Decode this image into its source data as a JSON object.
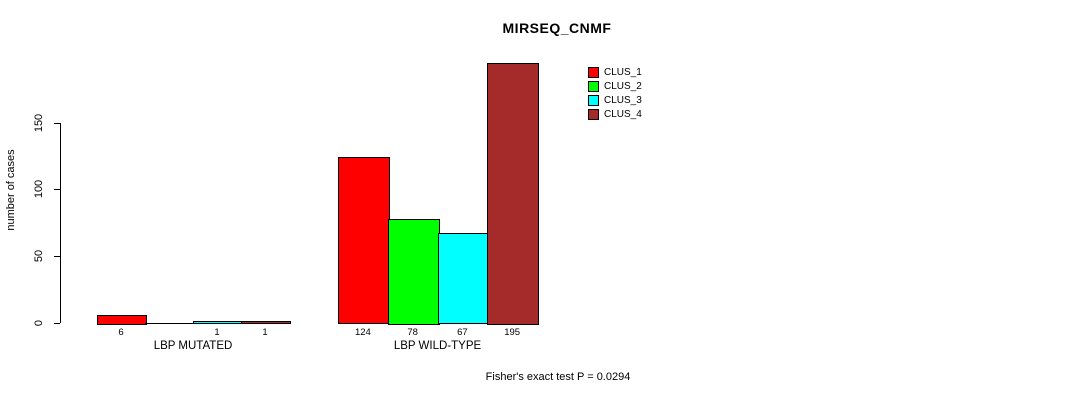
{
  "chart_data": {
    "type": "bar",
    "title": "MIRSEQ_CNMF",
    "xlabel": "",
    "ylabel": "number of cases",
    "yticks": [
      0,
      50,
      100,
      150
    ],
    "ylim": [
      0,
      200
    ],
    "grid": false,
    "legend_position": "top-right-of-plot",
    "categories": [
      "LBP MUTATED",
      "LBP WILD-TYPE"
    ],
    "series": [
      {
        "name": "CLUS_1",
        "color": "#FF0000",
        "values": [
          6,
          124
        ]
      },
      {
        "name": "CLUS_2",
        "color": "#00FF00",
        "values": [
          0,
          78
        ]
      },
      {
        "name": "CLUS_3",
        "color": "#00FFFF",
        "values": [
          1,
          67
        ]
      },
      {
        "name": "CLUS_4",
        "color": "#A52A2A",
        "values": [
          1,
          195
        ]
      }
    ],
    "bar_value_labels": [
      [
        "6",
        "",
        "1",
        "1"
      ],
      [
        "124",
        "78",
        "67",
        "195"
      ]
    ],
    "annotation": "Fisher's exact test P = 0.0294"
  }
}
